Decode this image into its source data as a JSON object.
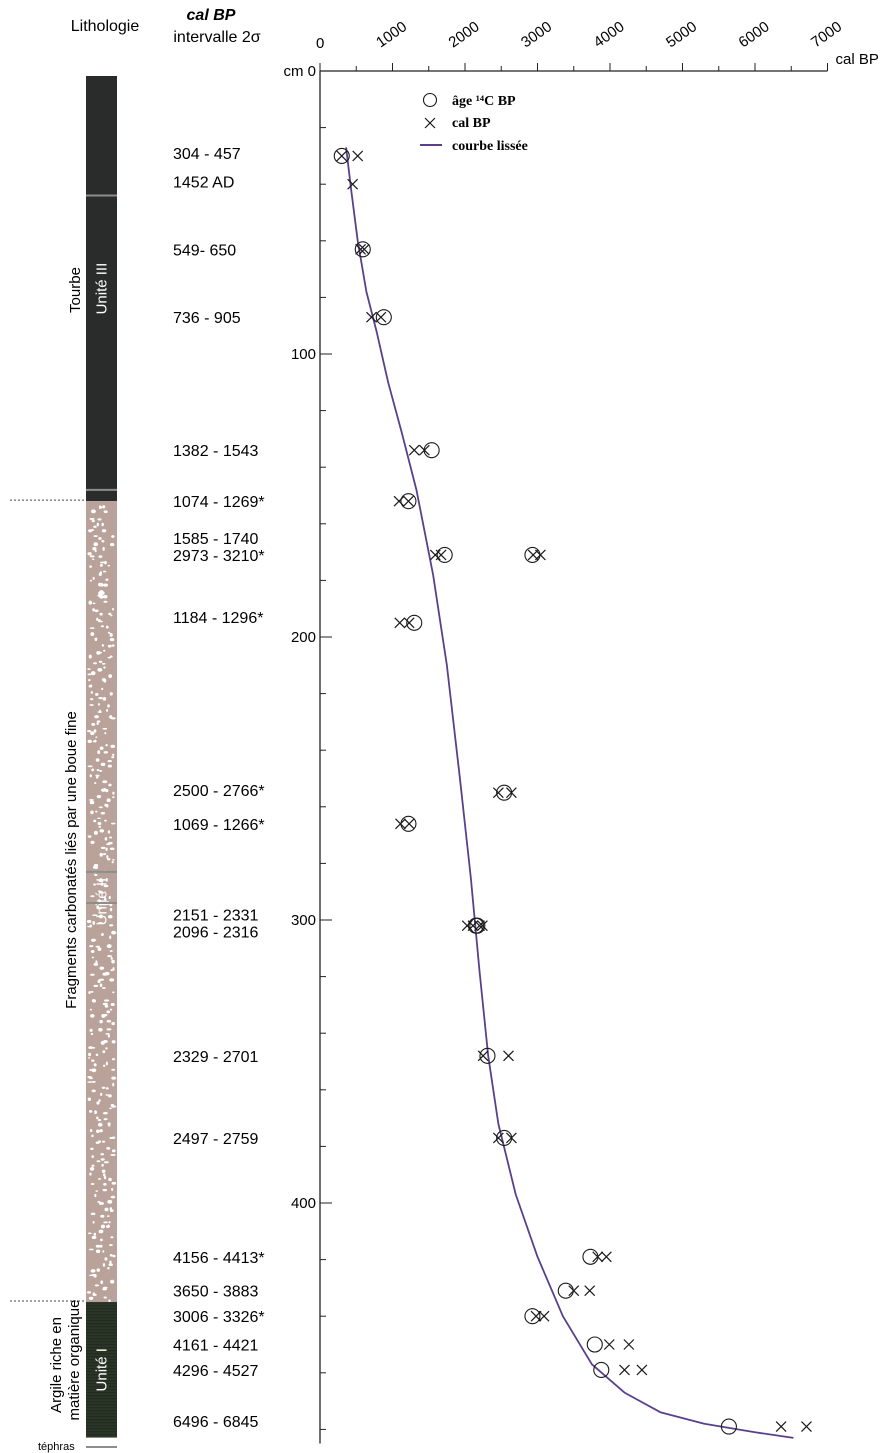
{
  "headers": {
    "lithologie": "Lithologie",
    "cal_bp": "cal BP",
    "intervalle": "intervalle 2σ"
  },
  "column": {
    "units": [
      {
        "name": "Unité III",
        "top_cm": 0,
        "bottom_cm": 152,
        "color": "#2a2c2c",
        "pattern": "none"
      },
      {
        "name": "Unité II",
        "top_cm": 152,
        "bottom_cm": 435,
        "color": "#b9a29a",
        "pattern": "carbonate-fragments"
      },
      {
        "name": "Unité I",
        "top_cm": 435,
        "bottom_cm": 485,
        "color": "#232b21",
        "pattern": "fine-lines"
      }
    ],
    "facies": [
      "Tourbe",
      "Fragments carbonatés liés par une boue fine",
      "Argile riche en",
      "matière organique"
    ],
    "tephra_label": "téphras",
    "tephra_depths_cm": [
      44,
      148,
      283,
      294
    ]
  },
  "date_labels": [
    {
      "text": "304 - 457",
      "depth": 29
    },
    {
      "text": "1452 AD",
      "depth": 39
    },
    {
      "text": "549- 650",
      "depth": 63
    },
    {
      "text": "736 - 905",
      "depth": 87
    },
    {
      "text": "1382 - 1543",
      "depth": 134
    },
    {
      "text": "1074 - 1269*",
      "depth": 152
    },
    {
      "text": "1585 - 1740",
      "depth": 165
    },
    {
      "text": "2973 - 3210*",
      "depth": 171
    },
    {
      "text": "1184 - 1296*",
      "depth": 193
    },
    {
      "text": "2500 - 2766*",
      "depth": 254
    },
    {
      "text": "1069 - 1266*",
      "depth": 266
    },
    {
      "text": "2151 - 2331",
      "depth": 298
    },
    {
      "text": "2096 - 2316",
      "depth": 304
    },
    {
      "text": "2329 - 2701",
      "depth": 348
    },
    {
      "text": "2497 - 2759",
      "depth": 377
    },
    {
      "text": "4156 - 4413*",
      "depth": 419
    },
    {
      "text": "3650 - 3883",
      "depth": 431
    },
    {
      "text": "3006 - 3326*",
      "depth": 440
    },
    {
      "text": "4161 - 4421",
      "depth": 450
    },
    {
      "text": "4296 - 4527",
      "depth": 459
    },
    {
      "text": "6496 - 6845",
      "depth": 477
    }
  ],
  "chart_data": {
    "type": "scatter",
    "xlabel": "cal BP",
    "ylabel": "cm",
    "xlim": [
      0,
      7000
    ],
    "ylim": [
      0,
      485
    ],
    "x_ticks": [
      "0",
      "1000",
      "2000",
      "3000",
      "4000",
      "5000",
      "6000",
      "7000"
    ],
    "y_ticks": [
      "0",
      "100",
      "200",
      "300",
      "400"
    ],
    "y_tick_values": [
      0,
      100,
      200,
      300,
      400
    ],
    "legend": [
      "âge ¹⁴C BP",
      "cal BP",
      "courbe lissée"
    ],
    "series": [
      {
        "name": "âge ¹⁴C BP",
        "marker": "circle",
        "points": [
          [
            300,
            30
          ],
          [
            590,
            63
          ],
          [
            880,
            87
          ],
          [
            1540,
            134
          ],
          [
            1220,
            152
          ],
          [
            1720,
            171
          ],
          [
            2930,
            171
          ],
          [
            1300,
            195
          ],
          [
            2540,
            255
          ],
          [
            1220,
            266
          ],
          [
            2150,
            302
          ],
          [
            2170,
            302
          ],
          [
            2310,
            348
          ],
          [
            2540,
            377
          ],
          [
            3730,
            419
          ],
          [
            3390,
            431
          ],
          [
            2930,
            440
          ],
          [
            3790,
            450
          ],
          [
            3880,
            459
          ],
          [
            5640,
            479
          ]
        ]
      },
      {
        "name": "cal BP",
        "marker": "cross",
        "points": [
          [
            300,
            30
          ],
          [
            520,
            30
          ],
          [
            450,
            40
          ],
          [
            560,
            63
          ],
          [
            610,
            63
          ],
          [
            710,
            87
          ],
          [
            840,
            87
          ],
          [
            1300,
            134
          ],
          [
            1440,
            134
          ],
          [
            1090,
            152
          ],
          [
            1220,
            152
          ],
          [
            1590,
            171
          ],
          [
            1670,
            171
          ],
          [
            2940,
            171
          ],
          [
            3040,
            171
          ],
          [
            1100,
            195
          ],
          [
            1230,
            195
          ],
          [
            2460,
            255
          ],
          [
            2640,
            255
          ],
          [
            1110,
            266
          ],
          [
            1230,
            266
          ],
          [
            2030,
            302
          ],
          [
            2110,
            302
          ],
          [
            2200,
            302
          ],
          [
            2240,
            302
          ],
          [
            2250,
            348
          ],
          [
            2600,
            348
          ],
          [
            2460,
            377
          ],
          [
            2640,
            377
          ],
          [
            3830,
            419
          ],
          [
            3950,
            419
          ],
          [
            3500,
            431
          ],
          [
            3720,
            431
          ],
          [
            2980,
            440
          ],
          [
            3090,
            440
          ],
          [
            3990,
            450
          ],
          [
            4260,
            450
          ],
          [
            4200,
            459
          ],
          [
            4440,
            459
          ],
          [
            6360,
            479
          ],
          [
            6710,
            479
          ]
        ]
      },
      {
        "name": "courbe lissée",
        "marker": "line",
        "color": "#5b3f8c",
        "points": [
          [
            360,
            27
          ],
          [
            430,
            42
          ],
          [
            520,
            60
          ],
          [
            640,
            78
          ],
          [
            780,
            92
          ],
          [
            940,
            110
          ],
          [
            1130,
            128
          ],
          [
            1330,
            148
          ],
          [
            1560,
            178
          ],
          [
            1750,
            210
          ],
          [
            1930,
            250
          ],
          [
            2080,
            285
          ],
          [
            2200,
            318
          ],
          [
            2320,
            348
          ],
          [
            2460,
            372
          ],
          [
            2700,
            397
          ],
          [
            3000,
            419
          ],
          [
            3350,
            440
          ],
          [
            3750,
            457
          ],
          [
            4200,
            467
          ],
          [
            4700,
            474
          ],
          [
            5300,
            478
          ],
          [
            6000,
            481
          ],
          [
            6530,
            483
          ]
        ]
      }
    ]
  }
}
